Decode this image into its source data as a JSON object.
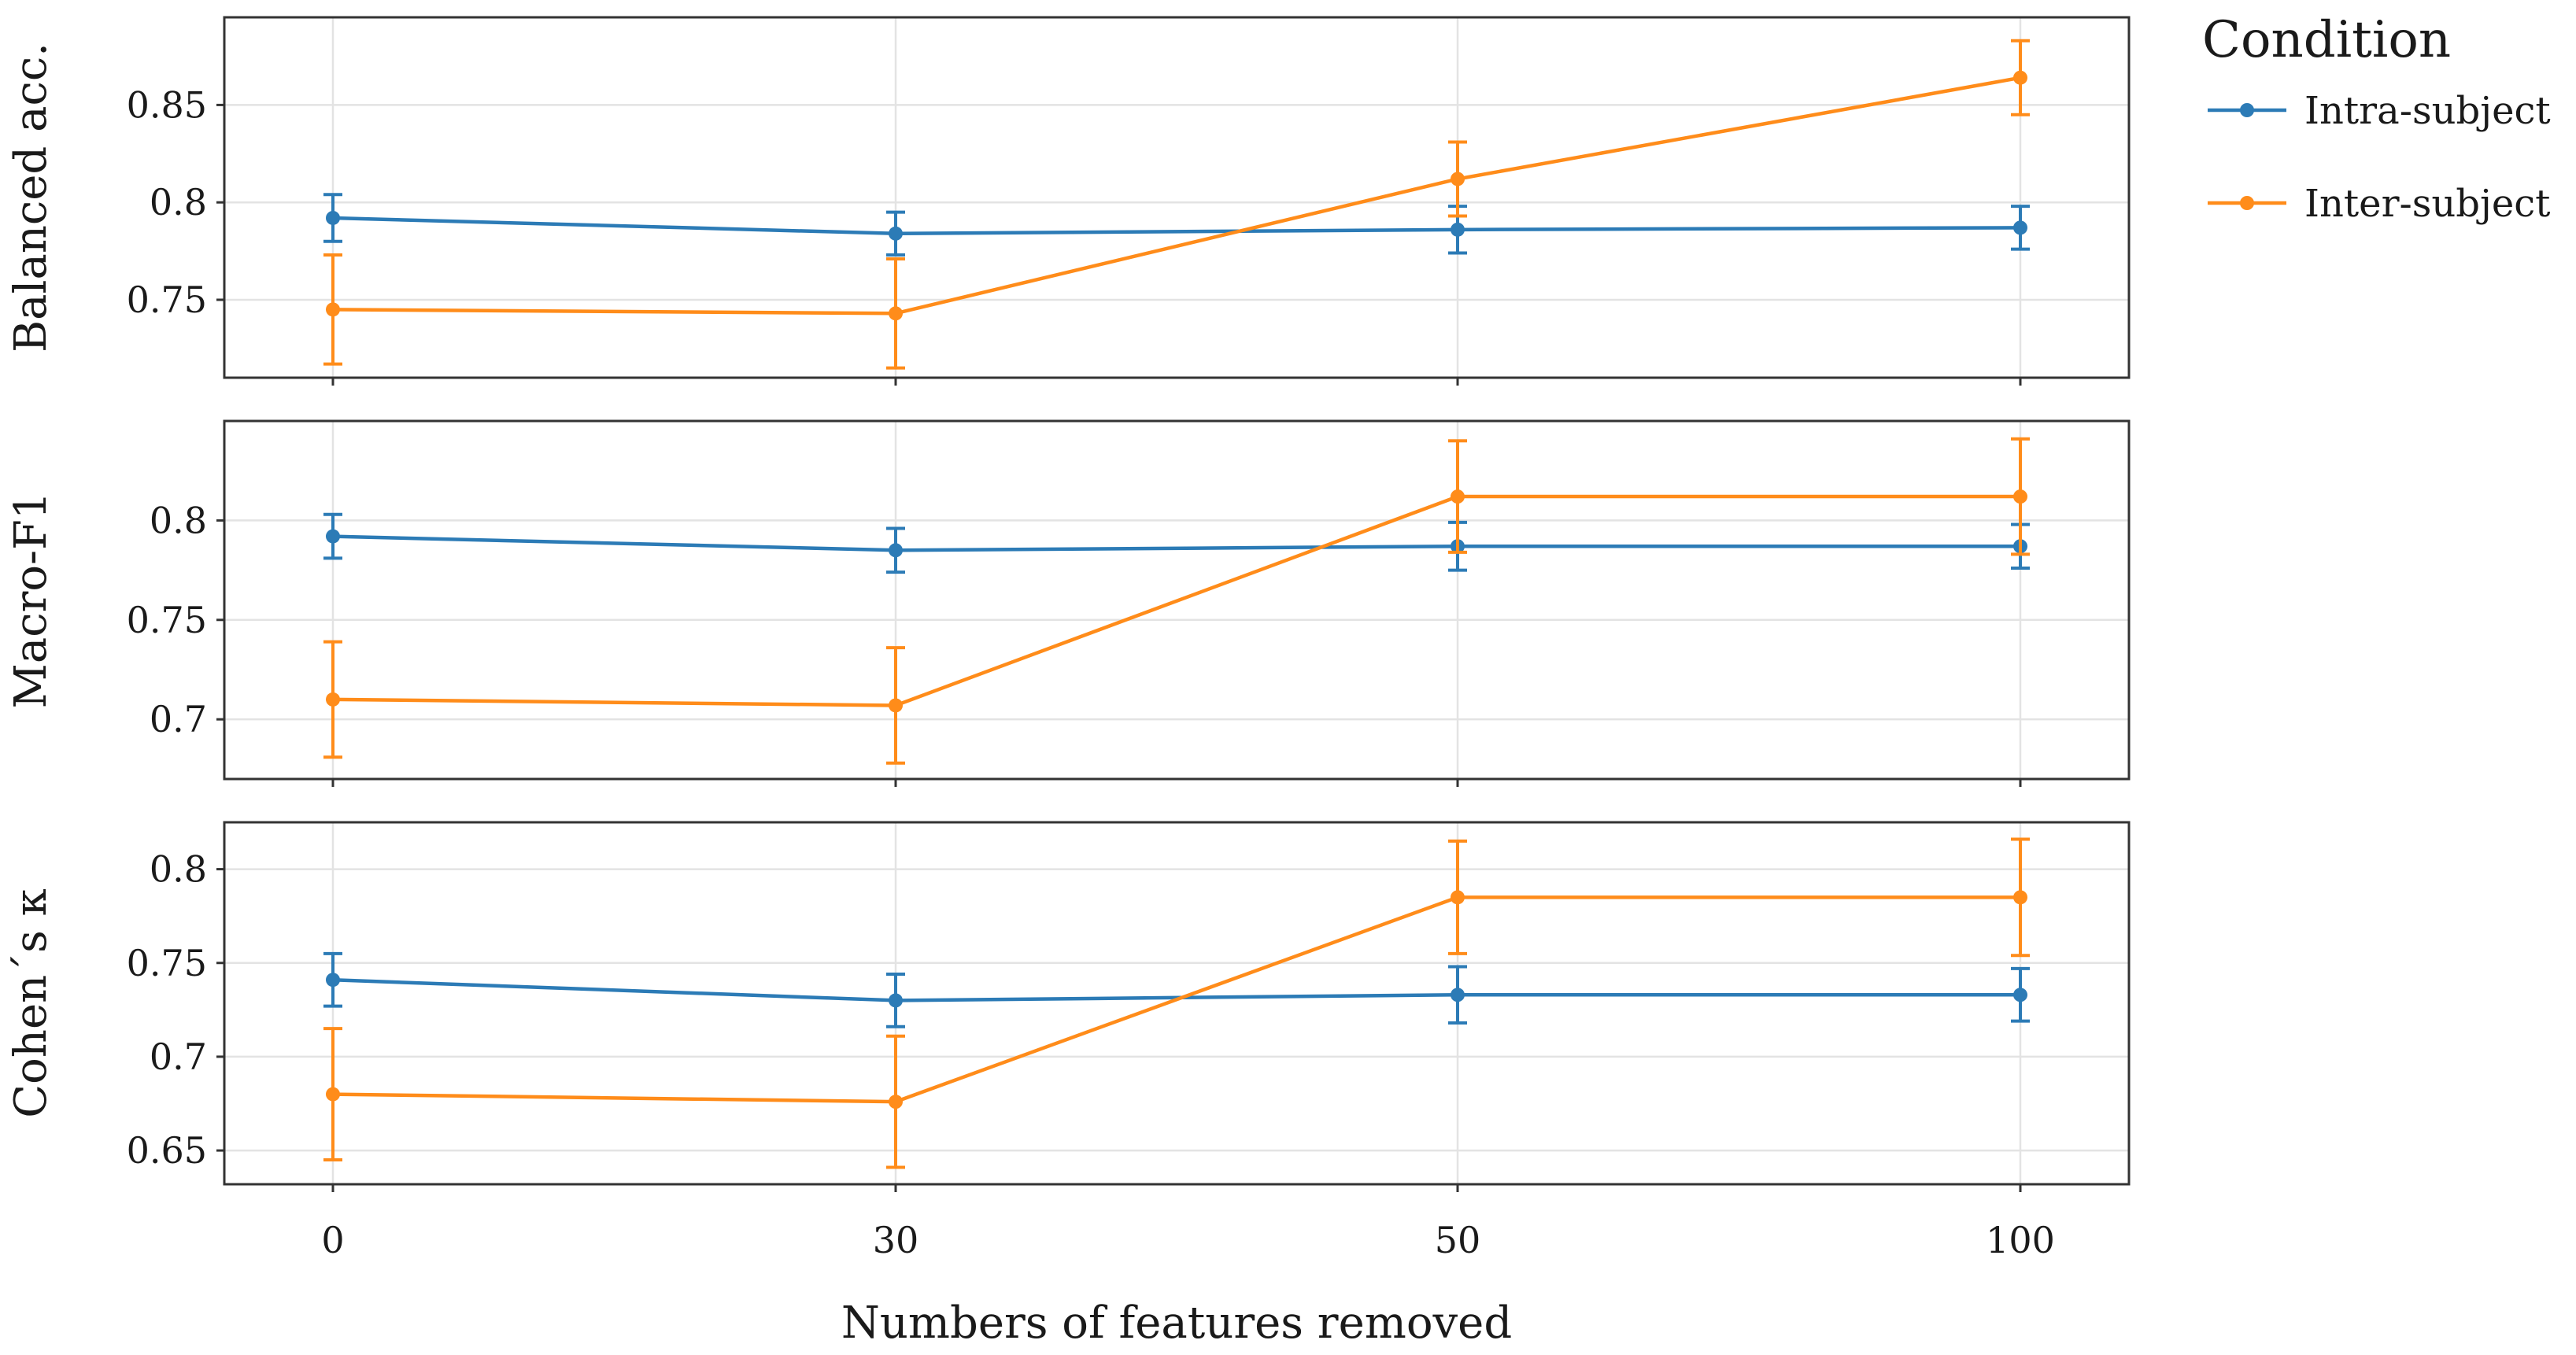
{
  "chart_data": {
    "type": "line",
    "xlabel": "Numbers of features removed",
    "x": [
      0,
      30,
      50,
      100
    ],
    "x_tick_labels": [
      "0",
      "30",
      "50",
      "100"
    ],
    "legend": {
      "title": "Condition",
      "placement": "top-right",
      "entries": [
        "Intra-subject",
        "Inter-subject"
      ]
    },
    "colors": {
      "Intra-subject": "#2c7bb6",
      "Inter-subject": "#ff8c1a"
    },
    "grid": true,
    "panels": [
      {
        "ylabel": "Balanced acc.",
        "ylim": [
          0.71,
          0.895
        ],
        "yticks": [
          0.75,
          0.8,
          0.85
        ],
        "ytick_labels": [
          "0.75",
          "0.8",
          "0.85"
        ],
        "series": [
          {
            "name": "Intra-subject",
            "values": [
              0.792,
              0.784,
              0.786,
              0.787
            ],
            "err": [
              0.012,
              0.011,
              0.012,
              0.011
            ]
          },
          {
            "name": "Inter-subject",
            "values": [
              0.745,
              0.743,
              0.812,
              0.864
            ],
            "err": [
              0.028,
              0.028,
              0.019,
              0.019
            ]
          }
        ]
      },
      {
        "ylabel": "Macro-F1",
        "ylim": [
          0.67,
          0.85
        ],
        "yticks": [
          0.7,
          0.75,
          0.8
        ],
        "ytick_labels": [
          "0.7",
          "0.75",
          "0.8"
        ],
        "series": [
          {
            "name": "Intra-subject",
            "values": [
              0.792,
              0.785,
              0.787,
              0.787
            ],
            "err": [
              0.011,
              0.011,
              0.012,
              0.011
            ]
          },
          {
            "name": "Inter-subject",
            "values": [
              0.71,
              0.707,
              0.812,
              0.812
            ],
            "err": [
              0.029,
              0.029,
              0.028,
              0.029
            ]
          }
        ]
      },
      {
        "ylabel": "Cohen´s κ",
        "ylim": [
          0.632,
          0.825
        ],
        "yticks": [
          0.65,
          0.7,
          0.75,
          0.8
        ],
        "ytick_labels": [
          "0.65",
          "0.7",
          "0.75",
          "0.8"
        ],
        "series": [
          {
            "name": "Intra-subject",
            "values": [
              0.741,
              0.73,
              0.733,
              0.733
            ],
            "err": [
              0.014,
              0.014,
              0.015,
              0.014
            ]
          },
          {
            "name": "Inter-subject",
            "values": [
              0.68,
              0.676,
              0.785,
              0.785
            ],
            "err": [
              0.035,
              0.035,
              0.03,
              0.031
            ]
          }
        ]
      }
    ]
  }
}
